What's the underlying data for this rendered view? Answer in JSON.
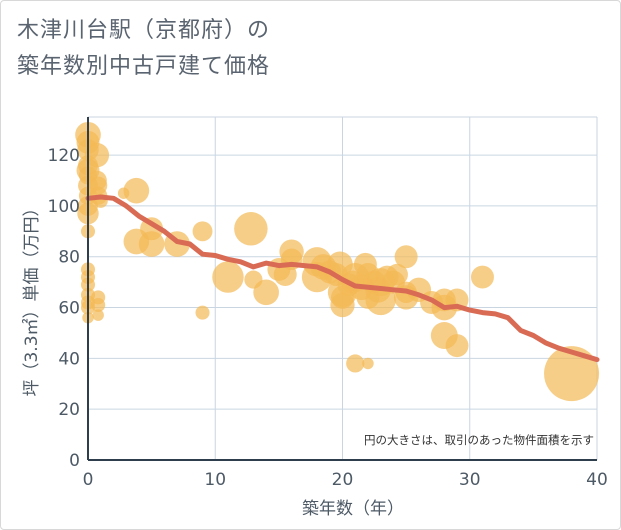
{
  "chart_data": {
    "type": "scatter",
    "title_line1": "木津川台駅（京都府）の",
    "title_line2": "築年数別中古戸建て価格",
    "xlabel": "築年数（年）",
    "ylabel": "坪（3.3㎡）単価（万円）",
    "xlim": [
      0,
      40
    ],
    "ylim": [
      0,
      135
    ],
    "x_ticks": [
      0,
      10,
      20,
      30,
      40
    ],
    "y_ticks": [
      0,
      20,
      40,
      60,
      80,
      100,
      120
    ],
    "grid": true,
    "note": "円の大きさは、取引のあった物件面積を示す",
    "colors": {
      "bubble": "#f4b955",
      "trend": "#d96b55",
      "grid": "#c9d6e2",
      "axis": "#2f3e4d"
    },
    "scatter": [
      {
        "x": 0,
        "y": 128,
        "size": 0.1
      },
      {
        "x": 0,
        "y": 125,
        "size": 0.08
      },
      {
        "x": 0,
        "y": 122,
        "size": 0.07
      },
      {
        "x": 0,
        "y": 116,
        "size": 0.06
      },
      {
        "x": 0,
        "y": 114,
        "size": 0.08
      },
      {
        "x": 0,
        "y": 112,
        "size": 0.05
      },
      {
        "x": 0,
        "y": 108,
        "size": 0.06
      },
      {
        "x": 0,
        "y": 104,
        "size": 0.05
      },
      {
        "x": 0,
        "y": 100,
        "size": 0.06
      },
      {
        "x": 0,
        "y": 97,
        "size": 0.07
      },
      {
        "x": 0,
        "y": 90,
        "size": 0.03
      },
      {
        "x": 0,
        "y": 75,
        "size": 0.03
      },
      {
        "x": 0,
        "y": 72,
        "size": 0.03
      },
      {
        "x": 0,
        "y": 69,
        "size": 0.03
      },
      {
        "x": 0,
        "y": 65,
        "size": 0.03
      },
      {
        "x": 0,
        "y": 62,
        "size": 0.03
      },
      {
        "x": 0,
        "y": 60,
        "size": 0.03
      },
      {
        "x": 0,
        "y": 56,
        "size": 0.02
      },
      {
        "x": 0.7,
        "y": 120,
        "size": 0.09
      },
      {
        "x": 0.7,
        "y": 110,
        "size": 0.06
      },
      {
        "x": 0.8,
        "y": 108,
        "size": 0.05
      },
      {
        "x": 0.8,
        "y": 104,
        "size": 0.05
      },
      {
        "x": 1,
        "y": 102,
        "size": 0.03
      },
      {
        "x": 0.8,
        "y": 64,
        "size": 0.03
      },
      {
        "x": 0.8,
        "y": 61,
        "size": 0.03
      },
      {
        "x": 0.8,
        "y": 57,
        "size": 0.02
      },
      {
        "x": 2.8,
        "y": 105,
        "size": 0.02
      },
      {
        "x": 3.8,
        "y": 106,
        "size": 0.1
      },
      {
        "x": 3.8,
        "y": 86,
        "size": 0.1
      },
      {
        "x": 5,
        "y": 91,
        "size": 0.08
      },
      {
        "x": 5,
        "y": 85,
        "size": 0.1
      },
      {
        "x": 7,
        "y": 85,
        "size": 0.1
      },
      {
        "x": 9,
        "y": 90,
        "size": 0.06
      },
      {
        "x": 9,
        "y": 58,
        "size": 0.03
      },
      {
        "x": 11,
        "y": 72,
        "size": 0.15
      },
      {
        "x": 12.8,
        "y": 91,
        "size": 0.17
      },
      {
        "x": 13,
        "y": 71,
        "size": 0.05
      },
      {
        "x": 14,
        "y": 66,
        "size": 0.1
      },
      {
        "x": 15,
        "y": 75,
        "size": 0.08
      },
      {
        "x": 15.5,
        "y": 73,
        "size": 0.08
      },
      {
        "x": 16,
        "y": 82,
        "size": 0.09
      },
      {
        "x": 16,
        "y": 79,
        "size": 0.07
      },
      {
        "x": 18,
        "y": 78,
        "size": 0.13
      },
      {
        "x": 18,
        "y": 72,
        "size": 0.14
      },
      {
        "x": 18.5,
        "y": 76,
        "size": 0.1
      },
      {
        "x": 19,
        "y": 74,
        "size": 0.08
      },
      {
        "x": 19.5,
        "y": 73,
        "size": 0.08
      },
      {
        "x": 19.8,
        "y": 77,
        "size": 0.1
      },
      {
        "x": 20,
        "y": 66,
        "size": 0.13
      },
      {
        "x": 20,
        "y": 61,
        "size": 0.09
      },
      {
        "x": 20,
        "y": 64,
        "size": 0.08
      },
      {
        "x": 20.5,
        "y": 69,
        "size": 0.08
      },
      {
        "x": 20.8,
        "y": 70,
        "size": 0.08
      },
      {
        "x": 21,
        "y": 72,
        "size": 0.12
      },
      {
        "x": 21,
        "y": 38,
        "size": 0.05
      },
      {
        "x": 21.5,
        "y": 68,
        "size": 0.1
      },
      {
        "x": 21.8,
        "y": 77,
        "size": 0.08
      },
      {
        "x": 22,
        "y": 73,
        "size": 0.08
      },
      {
        "x": 22,
        "y": 64,
        "size": 0.08
      },
      {
        "x": 22,
        "y": 38,
        "size": 0.02
      },
      {
        "x": 22.5,
        "y": 70,
        "size": 0.08
      },
      {
        "x": 22.8,
        "y": 67,
        "size": 0.1
      },
      {
        "x": 23,
        "y": 63,
        "size": 0.14
      },
      {
        "x": 23,
        "y": 70,
        "size": 0.12
      },
      {
        "x": 23.5,
        "y": 72,
        "size": 0.08
      },
      {
        "x": 24,
        "y": 70,
        "size": 0.08
      },
      {
        "x": 24.3,
        "y": 73,
        "size": 0.07
      },
      {
        "x": 25,
        "y": 80,
        "size": 0.08
      },
      {
        "x": 25,
        "y": 66,
        "size": 0.07
      },
      {
        "x": 25,
        "y": 64,
        "size": 0.09
      },
      {
        "x": 26,
        "y": 67,
        "size": 0.09
      },
      {
        "x": 27,
        "y": 62,
        "size": 0.08
      },
      {
        "x": 28,
        "y": 63,
        "size": 0.08
      },
      {
        "x": 28,
        "y": 60,
        "size": 0.1
      },
      {
        "x": 28,
        "y": 49,
        "size": 0.11
      },
      {
        "x": 29,
        "y": 63,
        "size": 0.08
      },
      {
        "x": 29,
        "y": 45,
        "size": 0.08
      },
      {
        "x": 31,
        "y": 72,
        "size": 0.08
      },
      {
        "x": 38,
        "y": 34,
        "size": 0.46
      }
    ],
    "series": [
      {
        "x": [
          0,
          1,
          2,
          3,
          4,
          5,
          6,
          7,
          8,
          9,
          10,
          11,
          12,
          13,
          14,
          15,
          16,
          17,
          18,
          19,
          20,
          21,
          22,
          23,
          24,
          25,
          26,
          27,
          28,
          29,
          30,
          31,
          32,
          33,
          34,
          35,
          36,
          37,
          38,
          39,
          40
        ],
        "y": [
          103,
          103.5,
          103,
          100,
          96,
          93,
          90,
          86,
          85,
          81,
          80.5,
          79,
          78,
          76,
          77.5,
          76.5,
          77,
          76.5,
          76,
          74,
          71,
          68.5,
          68,
          67.5,
          67,
          66.5,
          65,
          63,
          60,
          60.5,
          59,
          58,
          57.5,
          56,
          51,
          49,
          46,
          44,
          42.5,
          41,
          39.5
        ]
      }
    ]
  }
}
